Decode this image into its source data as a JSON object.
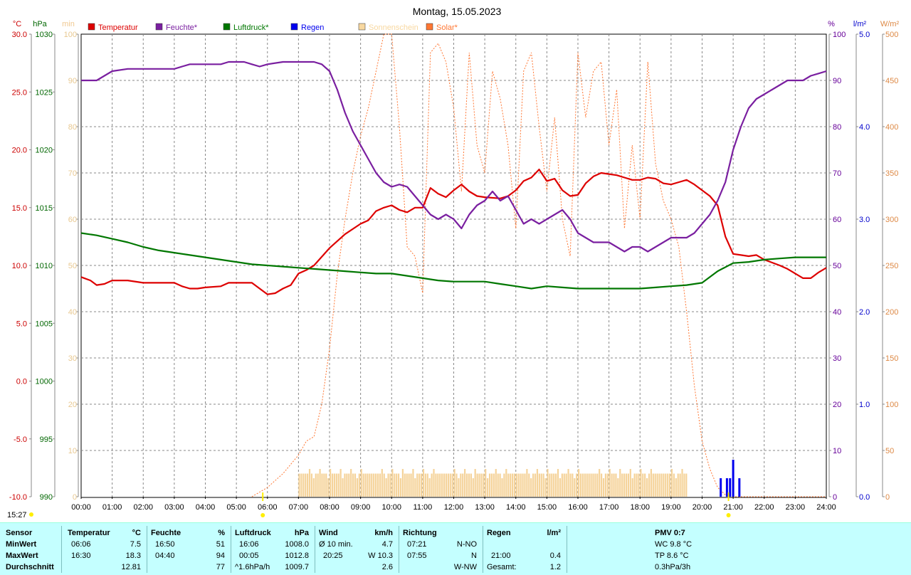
{
  "chart_data": {
    "type": "line",
    "title": "Montag, 15.05.2023",
    "x_ticks": [
      "00:00",
      "01:00",
      "02:00",
      "03:00",
      "04:00",
      "05:00",
      "06:00",
      "07:00",
      "08:00",
      "09:00",
      "10:00",
      "11:00",
      "12:00",
      "13:00",
      "14:00",
      "15:00",
      "16:00",
      "17:00",
      "18:00",
      "19:00",
      "20:00",
      "21:00",
      "22:00",
      "23:00",
      "24:00"
    ],
    "xlim": [
      0,
      24
    ],
    "axes": {
      "temp": {
        "unit": "°C",
        "ylim": [
          -10,
          30
        ],
        "ticks": [
          "-10.0",
          "-5.0",
          "0.0",
          "5.0",
          "10.0",
          "15.0",
          "20.0",
          "25.0",
          "30.0"
        ],
        "color": "#cc0000"
      },
      "press": {
        "unit": "hPa",
        "ylim": [
          990,
          1030
        ],
        "ticks": [
          "990",
          "995",
          "1000",
          "1005",
          "1010",
          "1015",
          "1020",
          "1025",
          "1030"
        ],
        "color": "#006600"
      },
      "sun": {
        "unit": "min",
        "ylim": [
          0,
          100
        ],
        "ticks": [
          "0",
          "10",
          "20",
          "30",
          "40",
          "50",
          "60",
          "70",
          "80",
          "90",
          "100"
        ],
        "color": "#f5d39a"
      },
      "hum": {
        "unit": "%",
        "ylim": [
          0,
          100
        ],
        "ticks": [
          "0",
          "10",
          "20",
          "30",
          "40",
          "50",
          "60",
          "70",
          "80",
          "90",
          "100"
        ],
        "color": "#660099"
      },
      "rain": {
        "unit": "l/m²",
        "ylim": [
          0,
          5
        ],
        "ticks": [
          "0.0",
          "1.0",
          "2.0",
          "3.0",
          "4.0",
          "5.0"
        ],
        "color": "#0000cc"
      },
      "solar": {
        "unit": "W/m²",
        "ylim": [
          0,
          500
        ],
        "ticks": [
          "0",
          "50",
          "100",
          "150",
          "200",
          "250",
          "300",
          "350",
          "400",
          "450",
          "500"
        ],
        "color": "#ff8844"
      }
    },
    "legend": [
      {
        "label": "Temperatur",
        "color": "#dd0000"
      },
      {
        "label": "Feuchte*",
        "color": "#7a1fa0"
      },
      {
        "label": "Luftdruck*",
        "color": "#007700"
      },
      {
        "label": "Regen",
        "color": "#0000ee"
      },
      {
        "label": "Sonnenschein",
        "color": "#f8d8a0"
      },
      {
        "label": "Solar*",
        "color": "#ff7733"
      }
    ],
    "series": [
      {
        "name": "Temperatur",
        "axis": "temp",
        "color": "#dd0000",
        "x": [
          0,
          0.3,
          0.5,
          0.75,
          1,
          1.5,
          2,
          2.5,
          3,
          3.25,
          3.5,
          3.75,
          4,
          4.5,
          4.75,
          5,
          5.5,
          5.75,
          6,
          6.25,
          6.5,
          6.75,
          7,
          7.25,
          7.5,
          8,
          8.5,
          9,
          9.25,
          9.5,
          9.75,
          10,
          10.25,
          10.5,
          10.75,
          11,
          11.25,
          11.5,
          11.75,
          12,
          12.25,
          12.5,
          12.75,
          13,
          13.5,
          13.75,
          14,
          14.25,
          14.5,
          14.75,
          15,
          15.25,
          15.5,
          15.75,
          16,
          16.25,
          16.5,
          16.75,
          17,
          17.25,
          17.5,
          17.75,
          18,
          18.25,
          18.5,
          18.75,
          19,
          19.25,
          19.5,
          19.75,
          20,
          20.25,
          20.5,
          20.75,
          21,
          21.25,
          21.5,
          21.75,
          22,
          22.5,
          22.75,
          23,
          23.25,
          23.5,
          23.75,
          24
        ],
        "y": [
          9.0,
          8.7,
          8.3,
          8.4,
          8.7,
          8.7,
          8.5,
          8.5,
          8.5,
          8.2,
          8.0,
          8.0,
          8.1,
          8.2,
          8.5,
          8.5,
          8.5,
          8.0,
          7.5,
          7.6,
          8.0,
          8.3,
          9.3,
          9.6,
          10.0,
          11.5,
          12.7,
          13.6,
          13.9,
          14.7,
          15.0,
          15.2,
          14.8,
          14.6,
          15.0,
          15.0,
          16.7,
          16.2,
          15.9,
          16.5,
          17.0,
          16.4,
          16.0,
          15.9,
          15.8,
          16.0,
          16.5,
          17.3,
          17.6,
          18.3,
          17.3,
          17.5,
          16.5,
          16.0,
          16.1,
          17.1,
          17.7,
          18.0,
          17.9,
          17.8,
          17.6,
          17.4,
          17.4,
          17.6,
          17.5,
          17.1,
          17.0,
          17.2,
          17.4,
          17.0,
          16.5,
          16.0,
          15.2,
          12.5,
          11.0,
          10.9,
          10.8,
          10.9,
          10.5,
          10.0,
          9.7,
          9.3,
          8.9,
          8.9,
          9.4,
          9.8
        ]
      },
      {
        "name": "Feuchte*",
        "axis": "hum",
        "color": "#7a1fa0",
        "x": [
          0,
          0.5,
          0.75,
          1,
          1.5,
          2,
          2.5,
          3,
          3.25,
          3.5,
          4,
          4.5,
          4.75,
          5,
          5.25,
          5.5,
          5.75,
          6,
          6.5,
          7,
          7.5,
          7.75,
          8,
          8.25,
          8.5,
          8.75,
          9,
          9.25,
          9.5,
          9.75,
          10,
          10.25,
          10.5,
          10.75,
          11,
          11.25,
          11.5,
          11.75,
          12,
          12.25,
          12.5,
          12.75,
          13,
          13.25,
          13.5,
          13.75,
          14,
          14.25,
          14.5,
          14.75,
          15,
          15.25,
          15.5,
          15.75,
          16,
          16.25,
          16.5,
          16.75,
          17,
          17.25,
          17.5,
          17.75,
          18,
          18.25,
          18.5,
          18.75,
          19,
          19.25,
          19.5,
          19.75,
          20,
          20.25,
          20.5,
          20.75,
          21,
          21.25,
          21.5,
          21.75,
          22,
          22.25,
          22.5,
          22.75,
          23,
          23.25,
          23.5,
          23.75,
          24
        ],
        "y": [
          90,
          90,
          91,
          92,
          92.5,
          92.5,
          92.5,
          92.5,
          93,
          93.5,
          93.5,
          93.5,
          94,
          94,
          94,
          93.5,
          93,
          93.5,
          94,
          94,
          94,
          93.5,
          92,
          88,
          83,
          79,
          76,
          73,
          70,
          68,
          67,
          67.5,
          67,
          65,
          63,
          61,
          60,
          61,
          60,
          58,
          61,
          63,
          64,
          66,
          64,
          65,
          62,
          59,
          60,
          59,
          60,
          61,
          62,
          60,
          57,
          56,
          55,
          55,
          55,
          54,
          53,
          54,
          54,
          53,
          54,
          55,
          56,
          56,
          56,
          57,
          59,
          61,
          64,
          68,
          75,
          80,
          84,
          86,
          87,
          88,
          89,
          90,
          90,
          90,
          91,
          91.5,
          92
        ]
      },
      {
        "name": "Luftdruck*",
        "axis": "press",
        "color": "#007700",
        "x": [
          0,
          0.5,
          1,
          1.5,
          2,
          2.5,
          3,
          3.5,
          4,
          4.5,
          5,
          5.5,
          6,
          6.5,
          7,
          7.5,
          8,
          8.5,
          9,
          9.5,
          10,
          10.5,
          11,
          11.5,
          12,
          12.5,
          13,
          13.5,
          14,
          14.5,
          15,
          15.5,
          16,
          16.5,
          17,
          17.5,
          18,
          18.5,
          19,
          19.5,
          20,
          20.5,
          21,
          21.5,
          22,
          22.5,
          23,
          23.5,
          24
        ],
        "y": [
          1012.8,
          1012.6,
          1012.3,
          1012.0,
          1011.6,
          1011.3,
          1011.1,
          1010.9,
          1010.7,
          1010.5,
          1010.3,
          1010.1,
          1010.0,
          1009.9,
          1009.8,
          1009.7,
          1009.6,
          1009.5,
          1009.4,
          1009.3,
          1009.3,
          1009.1,
          1008.9,
          1008.7,
          1008.6,
          1008.6,
          1008.6,
          1008.4,
          1008.2,
          1008.0,
          1008.2,
          1008.1,
          1008.0,
          1008.0,
          1008.0,
          1008.0,
          1008.0,
          1008.1,
          1008.2,
          1008.3,
          1008.5,
          1009.5,
          1010.2,
          1010.3,
          1010.5,
          1010.6,
          1010.7,
          1010.7,
          1010.7
        ]
      },
      {
        "name": "Solar*",
        "axis": "solar",
        "color": "#ff7733",
        "x": [
          5.5,
          6,
          6.5,
          7,
          7.25,
          7.5,
          7.75,
          8,
          8.25,
          8.5,
          8.75,
          9,
          9.25,
          9.5,
          9.75,
          10,
          10.25,
          10.5,
          10.75,
          11,
          11.25,
          11.5,
          11.75,
          12,
          12.25,
          12.5,
          12.75,
          13,
          13.25,
          13.5,
          13.75,
          14,
          14.25,
          14.5,
          14.75,
          15,
          15.25,
          15.5,
          15.75,
          16,
          16.25,
          16.5,
          16.75,
          17,
          17.25,
          17.5,
          17.75,
          18,
          18.25,
          18.5,
          18.75,
          19,
          19.25,
          19.5,
          19.75,
          20,
          20.25,
          20.5,
          20.75,
          21,
          21.5,
          22,
          24
        ],
        "y": [
          0,
          10,
          25,
          45,
          60,
          65,
          100,
          160,
          240,
          300,
          350,
          390,
          420,
          460,
          500,
          500,
          400,
          270,
          260,
          220,
          480,
          490,
          470,
          420,
          330,
          480,
          380,
          350,
          460,
          430,
          380,
          290,
          460,
          480,
          400,
          330,
          410,
          300,
          260,
          480,
          410,
          460,
          470,
          380,
          440,
          290,
          380,
          300,
          470,
          360,
          320,
          300,
          270,
          200,
          120,
          60,
          30,
          10,
          2,
          0,
          0,
          0,
          0
        ]
      }
    ],
    "rain": {
      "x": [
        20.6,
        20.8,
        20.9,
        21.0,
        21.2
      ],
      "values": [
        0.2,
        0.2,
        0.2,
        0.4,
        0.2
      ]
    },
    "sunshine": {
      "start": 7.0,
      "end": 19.5,
      "typical": 5
    }
  },
  "footer": {
    "time": "15:27"
  },
  "stats": {
    "row_labels": [
      "Sensor",
      "MinWert",
      "MaxWert",
      "Durchschnitt"
    ],
    "temperature": {
      "h": "Temperatur",
      "u": "°C",
      "min_t": "06:06",
      "min_v": "7.5",
      "max_t": "16:30",
      "max_v": "18.3",
      "avg": "12.81"
    },
    "humidity": {
      "h": "Feuchte",
      "u": "%",
      "min_t": "16:50",
      "min_v": "51",
      "max_t": "04:40",
      "max_v": "94",
      "avg": "77"
    },
    "pressure": {
      "h": "Luftdruck",
      "u": "hPa",
      "min_t": "16:06",
      "min_v": "1008.0",
      "max_t": "00:05",
      "max_v": "1012.8",
      "avg_t": "^1.6hPa/h",
      "avg_v": "1009.7"
    },
    "wind": {
      "h": "Wind",
      "u": "km/h",
      "min_t": "Ø 10 min.",
      "min_v": "4.7",
      "max_t": "20:25",
      "max_v": "W 10.3",
      "avg_v": "2.6"
    },
    "direction": {
      "h": "Richtung",
      "min_t": "07:21",
      "min_v": "N-NO",
      "max_t": "07:55",
      "max_v": "N",
      "avg_v": "W-NW"
    },
    "rain": {
      "h": "Regen",
      "u": "l/m²",
      "max_t": "21:00",
      "max_v": "0.4",
      "avg_t": "Gesamt:",
      "avg_v": "1.2"
    },
    "pmv": {
      "h": "PMV 0:7",
      "l1": "WC 9.8 °C",
      "l2": "TP 8.6 °C",
      "l3": "0.3hPa/3h"
    }
  }
}
